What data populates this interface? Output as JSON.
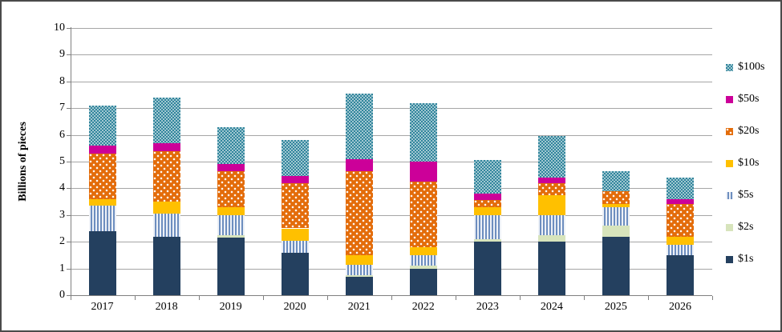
{
  "frame": {
    "background": "#FFFFFF",
    "border_color": "#4A4A4A"
  },
  "chart_data": {
    "type": "bar",
    "stacked": true,
    "title": "",
    "xlabel": "",
    "ylabel": "Billions of pieces",
    "ylim": [
      0,
      10
    ],
    "yticks": [
      0,
      1,
      2,
      3,
      4,
      5,
      6,
      7,
      8,
      9,
      10
    ],
    "grid": true,
    "legend_position": "right",
    "categories": [
      "2017",
      "2018",
      "2019",
      "2020",
      "2021",
      "2022",
      "2023",
      "2024",
      "2025",
      "2026"
    ],
    "series": [
      {
        "name": "$1s",
        "pattern": "solid",
        "color": "#24405F",
        "values": [
          2.4,
          2.2,
          2.15,
          1.6,
          0.7,
          1.0,
          2.0,
          2.0,
          2.2,
          1.5
        ]
      },
      {
        "name": "$2s",
        "pattern": "solid",
        "color": "#D7E4BC",
        "values": [
          0.0,
          0.0,
          0.1,
          0.0,
          0.05,
          0.1,
          0.1,
          0.25,
          0.4,
          0.0
        ]
      },
      {
        "name": "$5s",
        "pattern": "vstripes",
        "color": "#6D8EBF",
        "values": [
          0.95,
          0.85,
          0.75,
          0.45,
          0.4,
          0.4,
          0.9,
          0.75,
          0.7,
          0.4
        ]
      },
      {
        "name": "$10s",
        "pattern": "solid",
        "color": "#FFC000",
        "values": [
          0.25,
          0.45,
          0.3,
          0.45,
          0.35,
          0.3,
          0.3,
          0.75,
          0.1,
          0.3
        ]
      },
      {
        "name": "$20s",
        "pattern": "dots",
        "color": "#E36C0A",
        "values": [
          1.7,
          1.9,
          1.35,
          1.7,
          3.15,
          2.45,
          0.25,
          0.45,
          0.5,
          1.2
        ]
      },
      {
        "name": "$50s",
        "pattern": "solid",
        "color": "#CC0099",
        "values": [
          0.3,
          0.3,
          0.25,
          0.25,
          0.45,
          0.75,
          0.25,
          0.2,
          0.0,
          0.2
        ]
      },
      {
        "name": "$100s",
        "pattern": "checker",
        "color": "#31859C",
        "values": [
          1.5,
          1.7,
          1.4,
          1.35,
          2.45,
          2.2,
          1.25,
          1.55,
          0.75,
          0.8
        ]
      }
    ],
    "totals": [
      7.1,
      7.4,
      6.3,
      5.8,
      7.55,
      7.2,
      5.05,
      5.95,
      4.65,
      4.4
    ],
    "legend_order": [
      "$100s",
      "$50s",
      "$20s",
      "$10s",
      "$5s",
      "$2s",
      "$1s"
    ],
    "colors": {
      "gridline": "#A6A6A6",
      "axis": "#808080",
      "text": "#000000"
    }
  }
}
